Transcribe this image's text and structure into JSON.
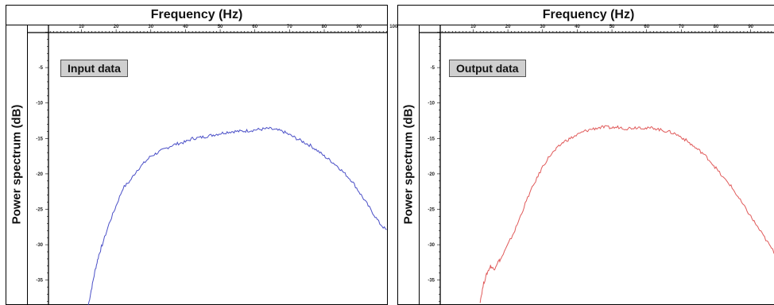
{
  "chart_data": [
    {
      "type": "line",
      "xlabel": "Frequency (Hz)",
      "ylabel": "Power spectrum (dB)",
      "xlim": [
        0,
        100
      ],
      "ylim": [
        -40,
        0
      ],
      "xticks": [
        10,
        20,
        30,
        40,
        50,
        60,
        70,
        80,
        90,
        100
      ],
      "yticks": [
        -5,
        -10,
        -15,
        -20,
        -25,
        -30,
        -35
      ],
      "legend_label": "Input data",
      "color": "#4a4fc7",
      "series": [
        {
          "x": [
            12,
            13,
            14,
            15,
            16,
            18,
            20,
            22,
            24,
            26,
            28,
            30,
            32,
            34,
            36,
            38,
            40,
            42,
            44,
            46,
            48,
            50,
            52,
            54,
            56,
            58,
            60,
            62,
            64,
            66,
            68,
            70,
            72,
            74,
            76,
            78,
            80,
            82,
            84,
            86,
            88,
            90,
            92,
            94,
            96,
            98,
            100
          ],
          "values": [
            -38.5,
            -36,
            -33.5,
            -31.5,
            -30,
            -27,
            -24.5,
            -22,
            -21,
            -19.5,
            -18.5,
            -17.5,
            -17,
            -16.5,
            -16,
            -15.7,
            -15.5,
            -15,
            -14.9,
            -14.7,
            -14.5,
            -14.3,
            -14.1,
            -14,
            -14,
            -13.9,
            -13.8,
            -13.7,
            -13.6,
            -13.8,
            -14,
            -14.5,
            -15,
            -15.5,
            -16,
            -16.7,
            -17.5,
            -18.2,
            -19,
            -20,
            -21,
            -22.5,
            -24,
            -25.5,
            -27,
            -28,
            -29
          ]
        }
      ]
    },
    {
      "type": "line",
      "xlabel": "Frequency (Hz)",
      "ylabel": "Power spectrum (dB)",
      "xlim": [
        0,
        100
      ],
      "ylim": [
        -40,
        0
      ],
      "xticks": [
        10,
        20,
        30,
        40,
        50,
        60,
        70,
        80,
        90
      ],
      "yticks": [
        -5,
        -10,
        -15,
        -20,
        -25,
        -30,
        -35
      ],
      "legend_label": "Output data",
      "color": "#e05a5a",
      "series": [
        {
          "x": [
            12,
            13,
            14,
            15,
            16,
            17,
            18,
            20,
            22,
            24,
            26,
            28,
            30,
            32,
            34,
            36,
            38,
            40,
            42,
            44,
            46,
            48,
            50,
            52,
            54,
            56,
            58,
            60,
            62,
            64,
            66,
            68,
            70,
            72,
            74,
            76,
            78,
            80,
            82,
            84,
            86,
            88,
            90,
            92,
            94,
            96,
            98,
            100
          ],
          "values": [
            -38,
            -35.5,
            -34,
            -33,
            -33.5,
            -32.5,
            -32,
            -30,
            -28,
            -25.5,
            -23,
            -21,
            -19,
            -17.5,
            -16.5,
            -15.5,
            -15,
            -14.5,
            -14,
            -13.7,
            -13.5,
            -13.4,
            -13.5,
            -13.4,
            -13.6,
            -13.5,
            -13.4,
            -13.6,
            -13.5,
            -13.8,
            -14,
            -14.3,
            -14.8,
            -15.5,
            -16.3,
            -17,
            -18,
            -19.2,
            -20.5,
            -21.5,
            -23,
            -24.5,
            -26,
            -27.5,
            -29,
            -30.5,
            -32,
            -33.5
          ]
        }
      ]
    }
  ]
}
